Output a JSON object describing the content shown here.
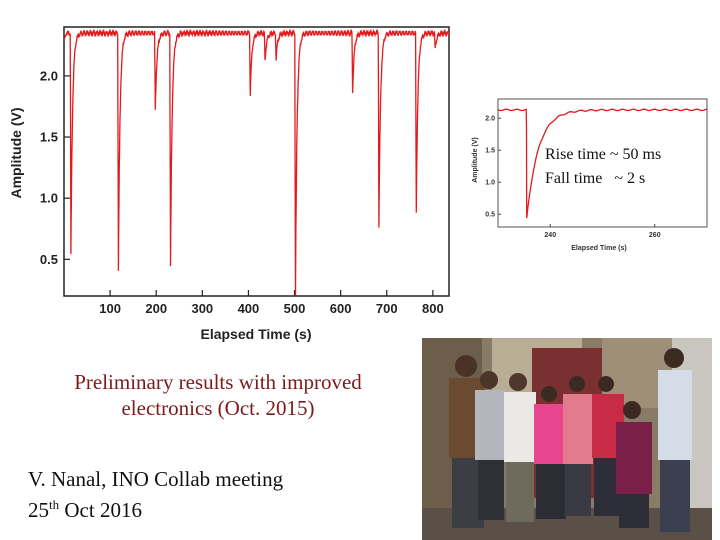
{
  "chart_data": [
    {
      "type": "line",
      "xlabel": "Elapsed Time (s)",
      "ylabel": "Amplitude (V)",
      "xlim": [
        0,
        835
      ],
      "ylim": [
        0.2,
        2.4
      ],
      "xticks": [
        100,
        200,
        300,
        400,
        500,
        600,
        700,
        800
      ],
      "yticks": [
        0.5,
        1.0,
        1.5,
        2.0
      ],
      "xtick_labels": [
        "100",
        "200",
        "300",
        "400",
        "500",
        "600",
        "700",
        "800"
      ],
      "ytick_labels": [
        "0.5",
        "1.0",
        "1.5",
        "2.0"
      ],
      "grid": false,
      "color": "#e31a1c",
      "baseline": 2.35,
      "dips": [
        {
          "x": 15,
          "min": 0.53
        },
        {
          "x": 118,
          "min": 0.42
        },
        {
          "x": 198,
          "min": 1.71
        },
        {
          "x": 231,
          "min": 0.43
        },
        {
          "x": 404,
          "min": 1.85
        },
        {
          "x": 436,
          "min": 2.12
        },
        {
          "x": 460,
          "min": 2.14
        },
        {
          "x": 502,
          "min": 0.21
        },
        {
          "x": 626,
          "min": 1.87
        },
        {
          "x": 683,
          "min": 0.77
        },
        {
          "x": 764,
          "min": 0.87
        },
        {
          "x": 805,
          "min": 2.22
        }
      ]
    },
    {
      "type": "line",
      "xlabel": "Elapsed Time (s)",
      "ylabel": "Amplitude (V)",
      "xlim": [
        230,
        270
      ],
      "ylim": [
        0.3,
        2.3
      ],
      "xticks": [
        240,
        260
      ],
      "yticks": [
        0.5,
        1.0,
        1.5,
        2.0
      ],
      "xtick_labels": [
        "240",
        "260"
      ],
      "ytick_labels": [
        "0.5",
        "1.0",
        "1.5",
        "2.0"
      ],
      "grid": false,
      "color": "#e31a1c",
      "baseline": 2.13,
      "dip_time": 235.5,
      "dip_min": 0.43,
      "annotations": [
        "Rise time ~ 50 ms",
        "Fall time   ~ 2 s"
      ]
    }
  ],
  "captions": {
    "prelim_line1": "Preliminary results with improved",
    "prelim_line2": "electronics (Oct. 2015)",
    "author_line1": "V. Nanal, INO Collab meeting",
    "author_line2_pre": "25",
    "author_line2_sup": "th",
    "author_line2_post": " Oct 2016"
  },
  "colors": {
    "trace": "#e31a1c",
    "caption": "#7b1b1b",
    "axis": "#222222"
  }
}
